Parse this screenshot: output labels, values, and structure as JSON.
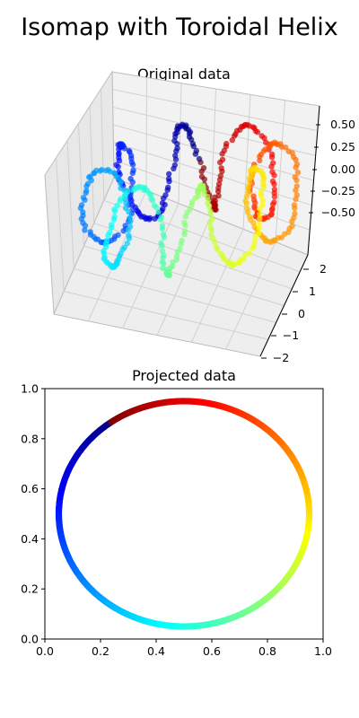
{
  "figure": {
    "suptitle": "Isomap with Toroidal Helix"
  },
  "chart_data": [
    {
      "type": "scatter",
      "subtype": "3d",
      "title": "Original data",
      "ztick_labels": [
        "0.50",
        "0.25",
        "0.00",
        "−0.25",
        "−0.50"
      ],
      "ytick_labels": [
        "2",
        "1",
        "0",
        "−1",
        "−2"
      ],
      "zlim": [
        -0.6,
        0.6
      ],
      "ylim": [
        -2.2,
        2.2
      ],
      "grid": true,
      "colormap": "jet",
      "marker_opacity": 0.7,
      "description_points": "toroidal helix; x = (2 + 0.5 cos 8t) cos t, y = (2 + 0.5 cos 8t) sin t, z = 0.5 sin 8t, t in [0, 2π]"
    },
    {
      "type": "scatter",
      "title": "Projected data",
      "xlim": [
        0.0,
        1.0
      ],
      "ylim": [
        0.0,
        1.0
      ],
      "xtick_labels": [
        "0.0",
        "0.2",
        "0.4",
        "0.6",
        "0.8",
        "1.0"
      ],
      "ytick_labels": [
        "0.0",
        "0.2",
        "0.4",
        "0.6",
        "0.8",
        "1.0"
      ],
      "grid": false,
      "colormap": "jet",
      "circle_center": [
        0.5,
        0.5
      ],
      "circle_radius": 0.45,
      "color_start_angle_deg": 126,
      "color_direction": "counterclockwise"
    }
  ]
}
